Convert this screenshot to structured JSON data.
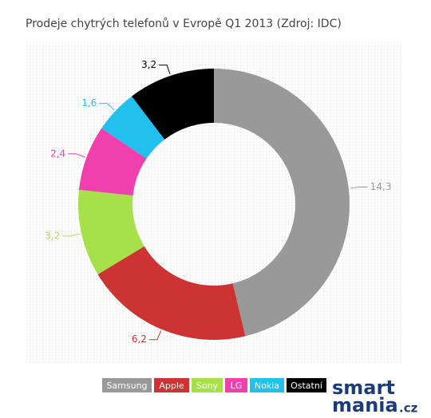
{
  "chart_data": {
    "type": "donut",
    "title": "Prodeje chytrých telefonů v Evropě Q1 2013 (Zdroj: IDC)",
    "categories": [
      "Samsung",
      "Apple",
      "Sony",
      "LG",
      "Nokia",
      "Ostatní"
    ],
    "values": [
      14.3,
      6.2,
      3.2,
      2.4,
      1.6,
      3.2
    ],
    "value_labels": [
      "14,3",
      "6,2",
      "3,2",
      "2,4",
      "1,6",
      "3,2"
    ],
    "colors": [
      "#999999",
      "#cc3333",
      "#a6e04a",
      "#f040ae",
      "#22c0ec",
      "#000000"
    ]
  },
  "logo": {
    "line1": "smart",
    "line2": "mania",
    "suffix": ".cz"
  }
}
